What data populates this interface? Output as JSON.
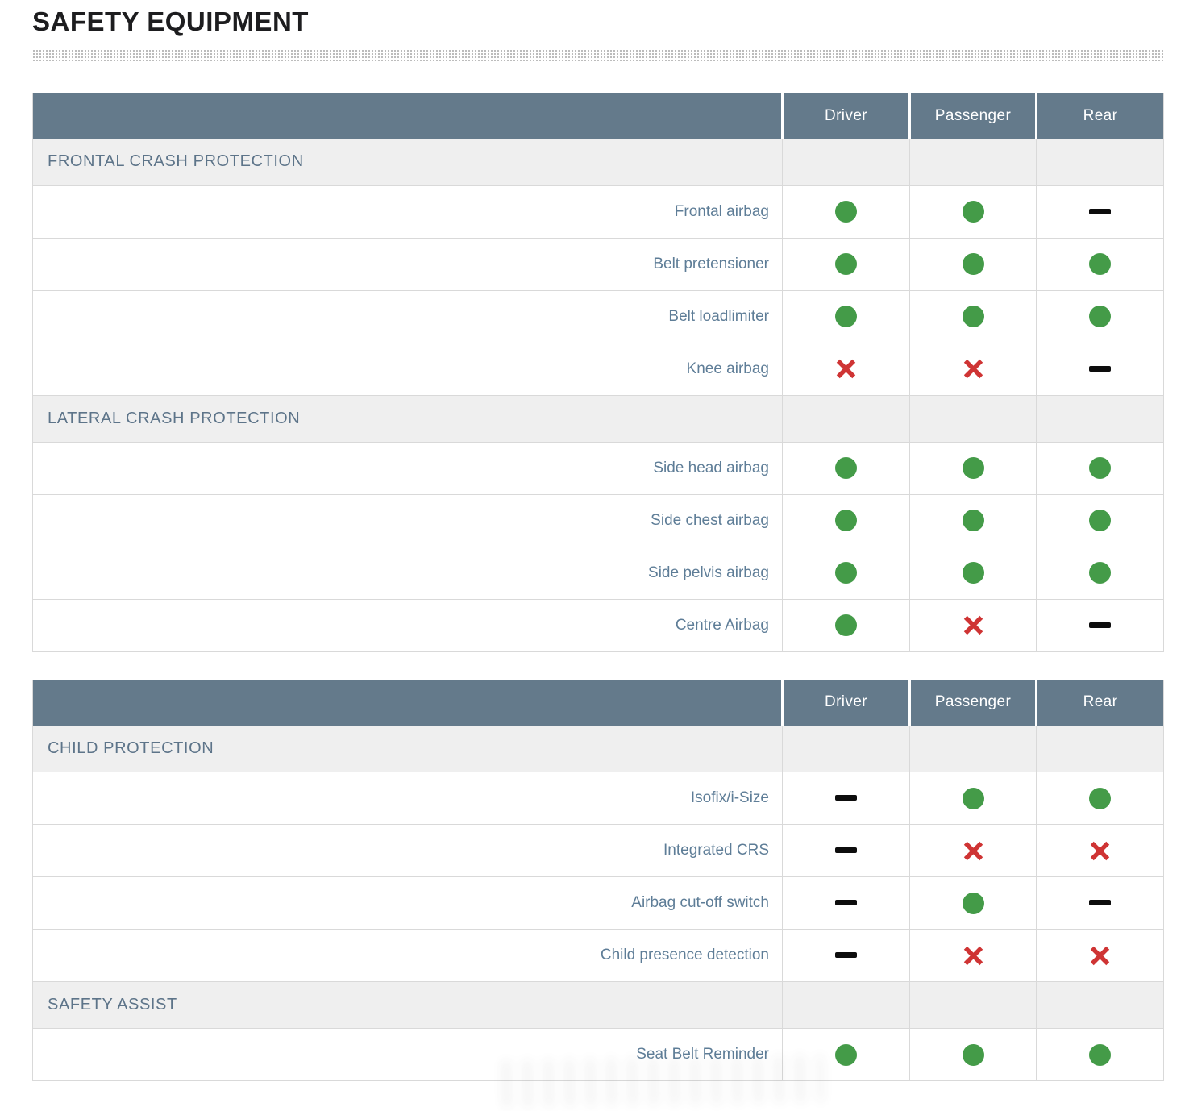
{
  "page": {
    "title": "SAFETY EQUIPMENT"
  },
  "colors": {
    "header_bg": "#647a8b",
    "header_text": "#ffffff",
    "section_bg": "#efefef",
    "section_text": "#5d7489",
    "label_text": "#5e7d97",
    "grid_border": "#d9d9d9",
    "equipped_green": "#449b48",
    "not_equipped_red": "#cf3434",
    "not_available_black": "#0d0d0d"
  },
  "icon_legend": {
    "yes": "green-circle-icon (equipped)",
    "no": "red-cross-icon (not equipped)",
    "none": "black-dash-icon (not applicable)"
  },
  "tables": [
    {
      "name": "crash-protection",
      "columns": [
        "Driver",
        "Passenger",
        "Rear"
      ],
      "rows": [
        {
          "type": "section",
          "label": "FRONTAL CRASH PROTECTION"
        },
        {
          "type": "data",
          "label": "Frontal airbag",
          "cells": [
            "yes",
            "yes",
            "none"
          ]
        },
        {
          "type": "data",
          "label": "Belt pretensioner",
          "cells": [
            "yes",
            "yes",
            "yes"
          ]
        },
        {
          "type": "data",
          "label": "Belt loadlimiter",
          "cells": [
            "yes",
            "yes",
            "yes"
          ]
        },
        {
          "type": "data",
          "label": "Knee airbag",
          "cells": [
            "no",
            "no",
            "none"
          ]
        },
        {
          "type": "section",
          "label": "LATERAL CRASH PROTECTION"
        },
        {
          "type": "data",
          "label": "Side head airbag",
          "cells": [
            "yes",
            "yes",
            "yes"
          ]
        },
        {
          "type": "data",
          "label": "Side chest airbag",
          "cells": [
            "yes",
            "yes",
            "yes"
          ]
        },
        {
          "type": "data",
          "label": "Side pelvis airbag",
          "cells": [
            "yes",
            "yes",
            "yes"
          ]
        },
        {
          "type": "data",
          "label": "Centre Airbag",
          "cells": [
            "yes",
            "no",
            "none"
          ]
        }
      ]
    },
    {
      "name": "child-protection-and-safety-assist",
      "columns": [
        "Driver",
        "Passenger",
        "Rear"
      ],
      "rows": [
        {
          "type": "section",
          "label": "CHILD PROTECTION"
        },
        {
          "type": "data",
          "label": "Isofix/i-Size",
          "cells": [
            "none",
            "yes",
            "yes"
          ]
        },
        {
          "type": "data",
          "label": "Integrated CRS",
          "cells": [
            "none",
            "no",
            "no"
          ]
        },
        {
          "type": "data",
          "label": "Airbag cut-off switch",
          "cells": [
            "none",
            "yes",
            "none"
          ]
        },
        {
          "type": "data",
          "label": "Child presence detection",
          "cells": [
            "none",
            "no",
            "no"
          ]
        },
        {
          "type": "section",
          "label": "SAFETY ASSIST"
        },
        {
          "type": "data",
          "label": "Seat Belt Reminder",
          "cells": [
            "yes",
            "yes",
            "yes"
          ]
        }
      ]
    }
  ]
}
